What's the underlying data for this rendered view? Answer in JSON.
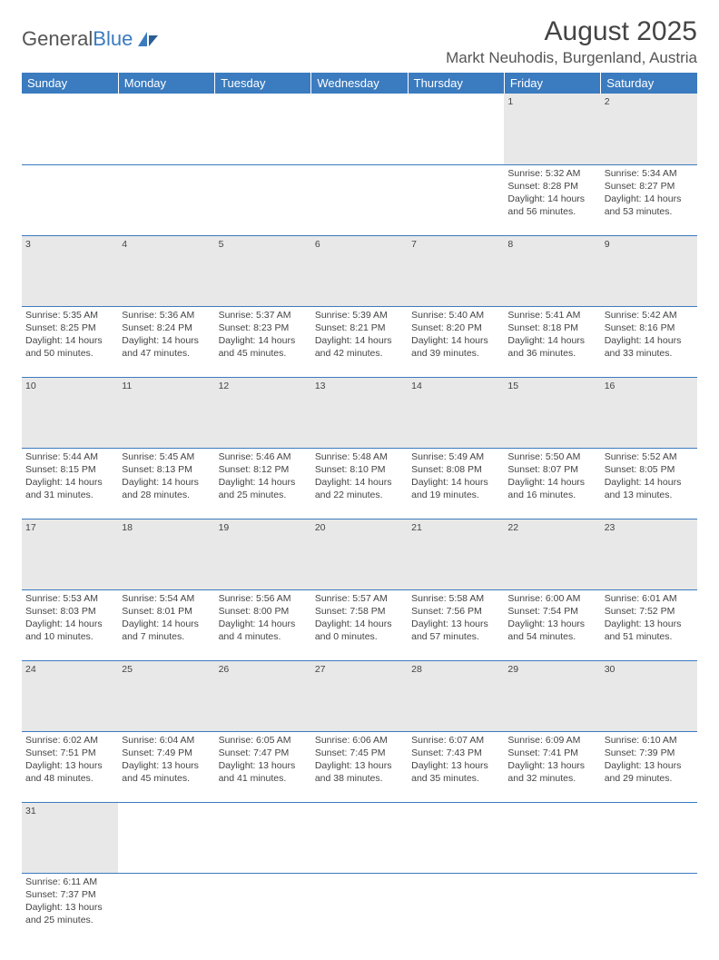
{
  "logo": {
    "part1": "General",
    "part2": "Blue"
  },
  "title": "August 2025",
  "location": "Markt Neuhodis, Burgenland, Austria",
  "colors": {
    "header_bg": "#3b7bbf",
    "header_text": "#ffffff",
    "daynum_bg": "#e8e8e8",
    "border": "#3b7bbf",
    "page_bg": "#ffffff",
    "text": "#444444"
  },
  "daysOfWeek": [
    "Sunday",
    "Monday",
    "Tuesday",
    "Wednesday",
    "Thursday",
    "Friday",
    "Saturday"
  ],
  "weeks": [
    [
      null,
      null,
      null,
      null,
      null,
      {
        "n": "1",
        "sr": "Sunrise: 5:32 AM",
        "ss": "Sunset: 8:28 PM",
        "d1": "Daylight: 14 hours",
        "d2": "and 56 minutes."
      },
      {
        "n": "2",
        "sr": "Sunrise: 5:34 AM",
        "ss": "Sunset: 8:27 PM",
        "d1": "Daylight: 14 hours",
        "d2": "and 53 minutes."
      }
    ],
    [
      {
        "n": "3",
        "sr": "Sunrise: 5:35 AM",
        "ss": "Sunset: 8:25 PM",
        "d1": "Daylight: 14 hours",
        "d2": "and 50 minutes."
      },
      {
        "n": "4",
        "sr": "Sunrise: 5:36 AM",
        "ss": "Sunset: 8:24 PM",
        "d1": "Daylight: 14 hours",
        "d2": "and 47 minutes."
      },
      {
        "n": "5",
        "sr": "Sunrise: 5:37 AM",
        "ss": "Sunset: 8:23 PM",
        "d1": "Daylight: 14 hours",
        "d2": "and 45 minutes."
      },
      {
        "n": "6",
        "sr": "Sunrise: 5:39 AM",
        "ss": "Sunset: 8:21 PM",
        "d1": "Daylight: 14 hours",
        "d2": "and 42 minutes."
      },
      {
        "n": "7",
        "sr": "Sunrise: 5:40 AM",
        "ss": "Sunset: 8:20 PM",
        "d1": "Daylight: 14 hours",
        "d2": "and 39 minutes."
      },
      {
        "n": "8",
        "sr": "Sunrise: 5:41 AM",
        "ss": "Sunset: 8:18 PM",
        "d1": "Daylight: 14 hours",
        "d2": "and 36 minutes."
      },
      {
        "n": "9",
        "sr": "Sunrise: 5:42 AM",
        "ss": "Sunset: 8:16 PM",
        "d1": "Daylight: 14 hours",
        "d2": "and 33 minutes."
      }
    ],
    [
      {
        "n": "10",
        "sr": "Sunrise: 5:44 AM",
        "ss": "Sunset: 8:15 PM",
        "d1": "Daylight: 14 hours",
        "d2": "and 31 minutes."
      },
      {
        "n": "11",
        "sr": "Sunrise: 5:45 AM",
        "ss": "Sunset: 8:13 PM",
        "d1": "Daylight: 14 hours",
        "d2": "and 28 minutes."
      },
      {
        "n": "12",
        "sr": "Sunrise: 5:46 AM",
        "ss": "Sunset: 8:12 PM",
        "d1": "Daylight: 14 hours",
        "d2": "and 25 minutes."
      },
      {
        "n": "13",
        "sr": "Sunrise: 5:48 AM",
        "ss": "Sunset: 8:10 PM",
        "d1": "Daylight: 14 hours",
        "d2": "and 22 minutes."
      },
      {
        "n": "14",
        "sr": "Sunrise: 5:49 AM",
        "ss": "Sunset: 8:08 PM",
        "d1": "Daylight: 14 hours",
        "d2": "and 19 minutes."
      },
      {
        "n": "15",
        "sr": "Sunrise: 5:50 AM",
        "ss": "Sunset: 8:07 PM",
        "d1": "Daylight: 14 hours",
        "d2": "and 16 minutes."
      },
      {
        "n": "16",
        "sr": "Sunrise: 5:52 AM",
        "ss": "Sunset: 8:05 PM",
        "d1": "Daylight: 14 hours",
        "d2": "and 13 minutes."
      }
    ],
    [
      {
        "n": "17",
        "sr": "Sunrise: 5:53 AM",
        "ss": "Sunset: 8:03 PM",
        "d1": "Daylight: 14 hours",
        "d2": "and 10 minutes."
      },
      {
        "n": "18",
        "sr": "Sunrise: 5:54 AM",
        "ss": "Sunset: 8:01 PM",
        "d1": "Daylight: 14 hours",
        "d2": "and 7 minutes."
      },
      {
        "n": "19",
        "sr": "Sunrise: 5:56 AM",
        "ss": "Sunset: 8:00 PM",
        "d1": "Daylight: 14 hours",
        "d2": "and 4 minutes."
      },
      {
        "n": "20",
        "sr": "Sunrise: 5:57 AM",
        "ss": "Sunset: 7:58 PM",
        "d1": "Daylight: 14 hours",
        "d2": "and 0 minutes."
      },
      {
        "n": "21",
        "sr": "Sunrise: 5:58 AM",
        "ss": "Sunset: 7:56 PM",
        "d1": "Daylight: 13 hours",
        "d2": "and 57 minutes."
      },
      {
        "n": "22",
        "sr": "Sunrise: 6:00 AM",
        "ss": "Sunset: 7:54 PM",
        "d1": "Daylight: 13 hours",
        "d2": "and 54 minutes."
      },
      {
        "n": "23",
        "sr": "Sunrise: 6:01 AM",
        "ss": "Sunset: 7:52 PM",
        "d1": "Daylight: 13 hours",
        "d2": "and 51 minutes."
      }
    ],
    [
      {
        "n": "24",
        "sr": "Sunrise: 6:02 AM",
        "ss": "Sunset: 7:51 PM",
        "d1": "Daylight: 13 hours",
        "d2": "and 48 minutes."
      },
      {
        "n": "25",
        "sr": "Sunrise: 6:04 AM",
        "ss": "Sunset: 7:49 PM",
        "d1": "Daylight: 13 hours",
        "d2": "and 45 minutes."
      },
      {
        "n": "26",
        "sr": "Sunrise: 6:05 AM",
        "ss": "Sunset: 7:47 PM",
        "d1": "Daylight: 13 hours",
        "d2": "and 41 minutes."
      },
      {
        "n": "27",
        "sr": "Sunrise: 6:06 AM",
        "ss": "Sunset: 7:45 PM",
        "d1": "Daylight: 13 hours",
        "d2": "and 38 minutes."
      },
      {
        "n": "28",
        "sr": "Sunrise: 6:07 AM",
        "ss": "Sunset: 7:43 PM",
        "d1": "Daylight: 13 hours",
        "d2": "and 35 minutes."
      },
      {
        "n": "29",
        "sr": "Sunrise: 6:09 AM",
        "ss": "Sunset: 7:41 PM",
        "d1": "Daylight: 13 hours",
        "d2": "and 32 minutes."
      },
      {
        "n": "30",
        "sr": "Sunrise: 6:10 AM",
        "ss": "Sunset: 7:39 PM",
        "d1": "Daylight: 13 hours",
        "d2": "and 29 minutes."
      }
    ],
    [
      {
        "n": "31",
        "sr": "Sunrise: 6:11 AM",
        "ss": "Sunset: 7:37 PM",
        "d1": "Daylight: 13 hours",
        "d2": "and 25 minutes."
      },
      null,
      null,
      null,
      null,
      null,
      null
    ]
  ]
}
